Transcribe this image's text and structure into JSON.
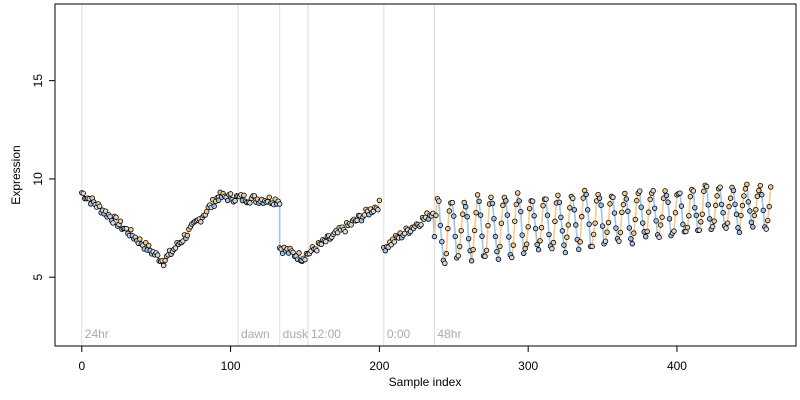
{
  "chart_data": {
    "type": "scatter",
    "title": "",
    "xlabel": "Sample index",
    "ylabel": "Expression",
    "xlim": [
      -18,
      480
    ],
    "ylim": [
      1.5,
      18.9
    ],
    "x_ticks": [
      0,
      100,
      200,
      300,
      400
    ],
    "y_ticks": [
      5,
      10,
      15
    ],
    "grid": false,
    "legend": "none",
    "vlines": [
      {
        "x": 0,
        "label": "24hr"
      },
      {
        "x": 105,
        "label": "dawn"
      },
      {
        "x": 133,
        "label": "dusk"
      },
      {
        "x": 152,
        "label": "12:00"
      },
      {
        "x": 203,
        "label": "0:00"
      },
      {
        "x": 237,
        "label": "48hr"
      }
    ],
    "segments": [
      {
        "x_start": 0,
        "x_end": 55,
        "y_start": 9.3,
        "y_end": 5.8
      },
      {
        "x_start": 55,
        "x_end": 92,
        "y_start": 5.8,
        "y_end": 9.1
      },
      {
        "x_start": 92,
        "x_end": 133,
        "y_start": 9.1,
        "y_end": 8.9
      },
      {
        "x_start": 133,
        "x_end": 148,
        "y_start": 6.5,
        "y_end": 6.0
      },
      {
        "x_start": 148,
        "x_end": 200,
        "y_start": 6.0,
        "y_end": 8.7
      },
      {
        "x_start": 203,
        "x_end": 236,
        "y_start": 6.5,
        "y_end": 8.3
      },
      {
        "x_start": 237,
        "x_end": 463,
        "y_start": 7.3,
        "y_end": 8.7
      }
    ],
    "oscillation": {
      "x_start": 237,
      "x_end": 463,
      "period": 9,
      "amplitude_start": 1.6,
      "amplitude_end": 1.0
    },
    "colors": {
      "line": "#999999",
      "point_stroke": "#000000",
      "point_high": "#f6c98c",
      "point_low": "#9ec3ec",
      "point_mid": "#d9d9d9",
      "marker_line": "#dddddd",
      "marker_text": "#aaaaaa"
    }
  }
}
